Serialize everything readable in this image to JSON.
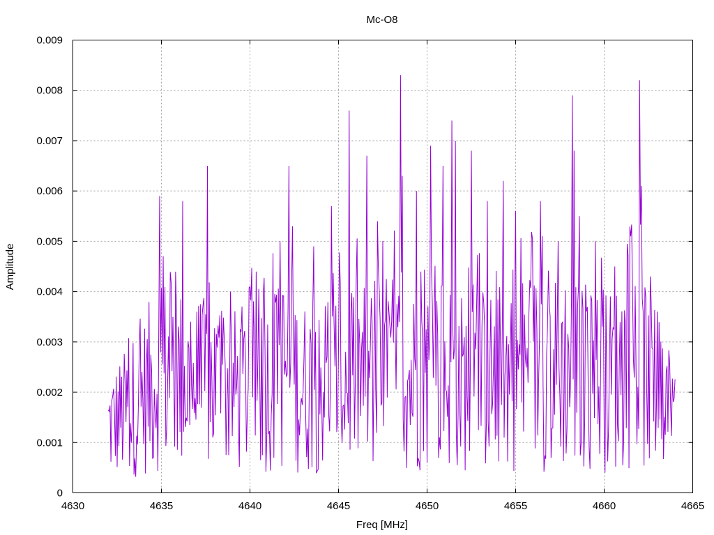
{
  "chart_data": {
    "type": "line",
    "title": "Mc-O8",
    "xlabel": "Freq [MHz]",
    "ylabel": "Amplitude",
    "xlim": [
      4630,
      4665
    ],
    "ylim": [
      0,
      0.009
    ],
    "x_ticks": [
      4630,
      4635,
      4640,
      4645,
      4650,
      4655,
      4660,
      4665
    ],
    "y_ticks": [
      0,
      0.001,
      0.002,
      0.003,
      0.004,
      0.005,
      0.006,
      0.007,
      0.008,
      0.009
    ],
    "y_tick_labels": [
      "0",
      "0.001",
      "0.002",
      "0.003",
      "0.004",
      "0.005",
      "0.006",
      "0.007",
      "0.008",
      "0.009"
    ],
    "grid": true,
    "legend": "none",
    "series_color": "#9400d3",
    "series": [
      {
        "x_range": [
          4632.0,
          4664.0
        ],
        "sample_step": 0.05,
        "envelope": [
          [
            4632.0,
            0.0015
          ],
          [
            4633.0,
            0.0018
          ],
          [
            4634.0,
            0.0022
          ],
          [
            4635.0,
            0.0028
          ],
          [
            4636.0,
            0.0026
          ],
          [
            4637.0,
            0.0024
          ],
          [
            4638.0,
            0.0025
          ],
          [
            4639.0,
            0.0023
          ],
          [
            4640.0,
            0.0024
          ],
          [
            4641.0,
            0.0025
          ],
          [
            4642.0,
            0.0028
          ],
          [
            4643.0,
            0.0024
          ],
          [
            4644.0,
            0.0025
          ],
          [
            4645.0,
            0.0026
          ],
          [
            4646.0,
            0.0027
          ],
          [
            4647.0,
            0.0026
          ],
          [
            4648.0,
            0.0028
          ],
          [
            4649.0,
            0.0026
          ],
          [
            4650.0,
            0.0027
          ],
          [
            4651.0,
            0.0028
          ],
          [
            4652.0,
            0.0025
          ],
          [
            4653.0,
            0.0026
          ],
          [
            4654.0,
            0.0025
          ],
          [
            4655.0,
            0.0027
          ],
          [
            4656.0,
            0.0028
          ],
          [
            4657.0,
            0.0027
          ],
          [
            4658.0,
            0.0029
          ],
          [
            4659.0,
            0.0027
          ],
          [
            4660.0,
            0.0025
          ],
          [
            4661.0,
            0.0027
          ],
          [
            4662.0,
            0.003
          ],
          [
            4663.0,
            0.0021
          ],
          [
            4664.0,
            0.0013
          ]
        ],
        "peaks": [
          [
            4634.9,
            0.0059
          ],
          [
            4635.1,
            0.0047
          ],
          [
            4636.2,
            0.0058
          ],
          [
            4637.6,
            0.0065
          ],
          [
            4638.9,
            0.004
          ],
          [
            4640.0,
            0.0041
          ],
          [
            4641.7,
            0.005
          ],
          [
            4642.2,
            0.0065
          ],
          [
            4642.4,
            0.0053
          ],
          [
            4643.6,
            0.0049
          ],
          [
            4644.6,
            0.0057
          ],
          [
            4645.6,
            0.0076
          ],
          [
            4646.6,
            0.0067
          ],
          [
            4647.2,
            0.0054
          ],
          [
            4648.5,
            0.0083
          ],
          [
            4648.6,
            0.0063
          ],
          [
            4649.4,
            0.006
          ],
          [
            4650.2,
            0.0069
          ],
          [
            4650.9,
            0.0065
          ],
          [
            4651.4,
            0.0074
          ],
          [
            4651.6,
            0.007
          ],
          [
            4652.5,
            0.0068
          ],
          [
            4653.4,
            0.0058
          ],
          [
            4654.3,
            0.0062
          ],
          [
            4655.0,
            0.0056
          ],
          [
            4656.4,
            0.0058
          ],
          [
            4657.4,
            0.005
          ],
          [
            4658.2,
            0.0079
          ],
          [
            4658.3,
            0.0068
          ],
          [
            4658.6,
            0.0055
          ],
          [
            4659.5,
            0.005
          ],
          [
            4660.6,
            0.0045
          ],
          [
            4661.5,
            0.0051
          ],
          [
            4662.0,
            0.0082
          ],
          [
            4662.1,
            0.0061
          ],
          [
            4662.6,
            0.0043
          ]
        ]
      }
    ]
  }
}
